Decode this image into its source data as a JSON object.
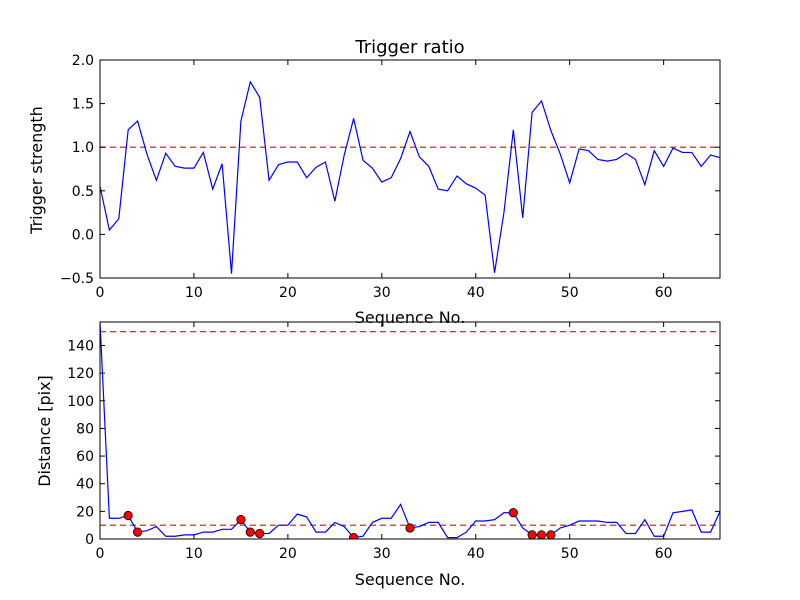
{
  "chart_data": [
    {
      "type": "line",
      "title": "Trigger ratio",
      "xlabel": "Sequence No.",
      "ylabel": "Trigger strength",
      "xlim": [
        0,
        66
      ],
      "ylim": [
        -0.5,
        2.0
      ],
      "xticks": [
        0,
        10,
        20,
        30,
        40,
        50,
        60
      ],
      "yticks": [
        -0.5,
        0.0,
        0.5,
        1.0,
        1.5,
        2.0
      ],
      "ytick_labels": [
        "−0.5",
        "0.0",
        "0.5",
        "1.0",
        "1.5",
        "2.0"
      ],
      "grid": false,
      "threshold": 1.0,
      "line_color": "#0000ff",
      "threshold_color": "#ff0000",
      "series": [
        {
          "x": [
            0,
            1,
            2,
            3,
            4,
            5,
            6,
            7,
            8,
            9,
            10,
            11,
            12,
            13,
            14,
            15,
            16,
            17,
            18,
            19,
            20,
            21,
            22,
            23,
            24,
            25,
            26,
            27,
            28,
            29,
            30,
            31,
            32,
            33,
            34,
            35,
            36,
            37,
            38,
            39,
            40,
            41,
            42,
            43,
            44,
            45,
            46,
            47,
            48,
            49,
            50,
            51,
            52,
            53,
            54,
            55,
            56,
            57,
            58,
            59,
            60,
            61,
            62,
            63,
            64,
            65,
            66
          ],
          "y": [
            0.55,
            0.05,
            0.18,
            1.2,
            1.3,
            0.92,
            0.62,
            0.93,
            0.78,
            0.76,
            0.76,
            0.94,
            0.52,
            0.81,
            -0.45,
            1.3,
            1.75,
            1.57,
            0.62,
            0.8,
            0.83,
            0.83,
            0.65,
            0.77,
            0.83,
            0.38,
            0.91,
            1.33,
            0.85,
            0.76,
            0.6,
            0.65,
            0.87,
            1.18,
            0.89,
            0.78,
            0.52,
            0.5,
            0.67,
            0.58,
            0.53,
            0.45,
            -0.44,
            0.25,
            1.2,
            0.19,
            1.4,
            1.53,
            1.19,
            0.92,
            0.59,
            0.98,
            0.96,
            0.86,
            0.84,
            0.86,
            0.93,
            0.86,
            0.57,
            0.96,
            0.78,
            0.99,
            0.94,
            0.94,
            0.78,
            0.91,
            0.88
          ]
        }
      ]
    },
    {
      "type": "line",
      "title": "",
      "xlabel": "Sequence No.",
      "ylabel": "Distance [pix]",
      "xlim": [
        0,
        66
      ],
      "ylim": [
        0,
        157
      ],
      "xticks": [
        0,
        10,
        20,
        30,
        40,
        50,
        60
      ],
      "yticks": [
        0,
        20,
        40,
        60,
        80,
        100,
        120,
        140
      ],
      "grid": false,
      "thresholds": [
        150,
        10
      ],
      "line_color": "#0000ff",
      "threshold_color": "#ff0000",
      "marker_color": "#ff0000",
      "series": [
        {
          "x": [
            0,
            1,
            2,
            3,
            4,
            5,
            6,
            7,
            8,
            9,
            10,
            11,
            12,
            13,
            14,
            15,
            16,
            17,
            18,
            19,
            20,
            21,
            22,
            23,
            24,
            25,
            26,
            27,
            28,
            29,
            30,
            31,
            32,
            33,
            34,
            35,
            36,
            37,
            38,
            39,
            40,
            41,
            42,
            43,
            44,
            45,
            46,
            47,
            48,
            49,
            50,
            51,
            52,
            53,
            54,
            55,
            56,
            57,
            58,
            59,
            60,
            61,
            62,
            63,
            64,
            65,
            66
          ],
          "y": [
            157,
            15,
            15,
            17,
            5,
            6,
            9,
            2,
            2,
            3,
            3,
            5,
            5,
            7,
            7,
            14,
            5,
            4,
            4,
            10,
            10,
            18,
            16,
            5,
            5,
            12,
            9,
            1,
            2,
            12,
            15,
            15,
            25,
            8,
            9,
            12,
            12,
            1,
            1,
            5,
            13,
            13,
            14,
            19,
            19,
            8,
            3,
            3,
            3,
            8,
            10,
            13,
            13,
            13,
            12,
            12,
            4,
            4,
            14,
            2,
            2,
            19,
            20,
            21,
            5,
            5,
            20
          ]
        }
      ],
      "markers": {
        "x": [
          3,
          4,
          15,
          16,
          17,
          27,
          33,
          44,
          46,
          47,
          48
        ],
        "y": [
          17,
          5,
          14,
          5,
          4,
          1,
          8,
          19,
          3,
          3,
          3
        ]
      }
    }
  ]
}
